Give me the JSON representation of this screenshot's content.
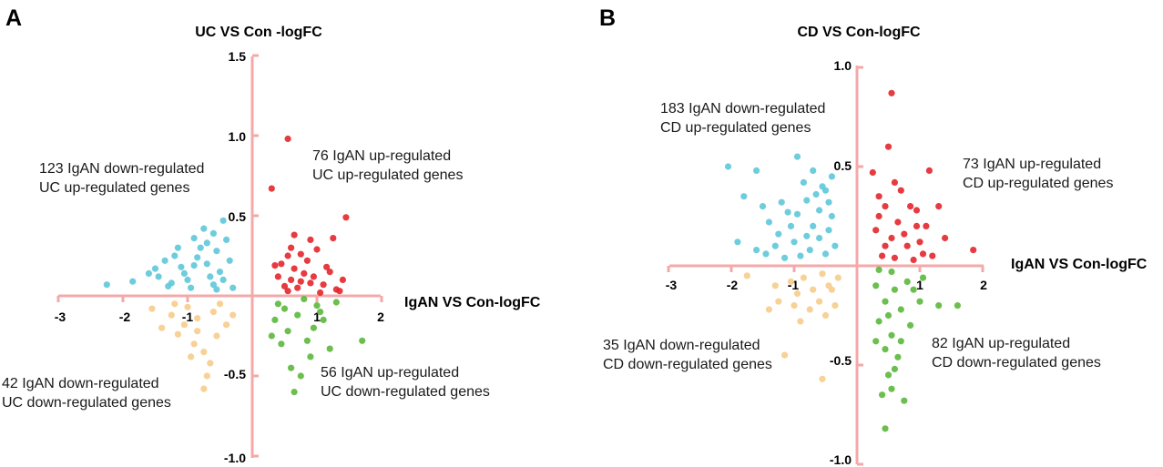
{
  "colors": {
    "axis": "#f4a9a9",
    "upup": "#e3262b",
    "downup": "#5ec8d8",
    "downdown": "#f6cc8a",
    "updown": "#5cb83c"
  },
  "chart_data": [
    {
      "panel": "A",
      "type": "scatter",
      "title": "UC VS Con -logFC",
      "xlabel": "IgAN VS Con-logFC",
      "ylabel": "UC VS Con -logFC",
      "xlim": [
        -3,
        2
      ],
      "ylim": [
        -1.0,
        1.5
      ],
      "xticks": [
        "-3",
        "-2",
        "-1",
        "1",
        "2"
      ],
      "yticks": [
        "1.5",
        "1.0",
        "0.5",
        "-0.5",
        "-1.0"
      ],
      "quadrants": [
        {
          "key": "downup",
          "line1": "123 IgAN down-regulated",
          "line2": "UC up-regulated genes",
          "count": 123
        },
        {
          "key": "upup",
          "line1": "76 IgAN up-regulated",
          "line2": "UC up-regulated genes",
          "count": 76
        },
        {
          "key": "downdown",
          "line1": "42 IgAN down-regulated",
          "line2": "UC down-regulated genes",
          "count": 42
        },
        {
          "key": "updown",
          "line1": "56 IgAN up-regulated",
          "line2": "UC down-regulated genes",
          "count": 56
        }
      ],
      "series": [
        {
          "name": "IgAN up / UC up",
          "key": "upup",
          "points": [
            [
              0.55,
              0.98
            ],
            [
              0.3,
              0.67
            ],
            [
              0.35,
              0.19
            ],
            [
              1.45,
              0.49
            ],
            [
              0.65,
              0.38
            ],
            [
              1.25,
              0.36
            ],
            [
              0.9,
              0.35
            ],
            [
              0.6,
              0.3
            ],
            [
              1.0,
              0.29
            ],
            [
              0.55,
              0.25
            ],
            [
              0.75,
              0.26
            ],
            [
              0.45,
              0.2
            ],
            [
              0.85,
              0.22
            ],
            [
              1.15,
              0.18
            ],
            [
              0.4,
              0.12
            ],
            [
              0.6,
              0.1
            ],
            [
              1.4,
              0.1
            ],
            [
              1.1,
              0.07
            ],
            [
              0.7,
              0.05
            ],
            [
              1.3,
              0.04
            ],
            [
              0.5,
              0.06
            ],
            [
              0.9,
              0.08
            ],
            [
              1.2,
              0.15
            ],
            [
              0.8,
              0.14
            ],
            [
              0.65,
              0.17
            ],
            [
              1.35,
              0.03
            ],
            [
              0.95,
              0.12
            ],
            [
              0.55,
              0.03
            ],
            [
              1.05,
              0.02
            ],
            [
              0.75,
              0.09
            ]
          ]
        },
        {
          "name": "IgAN down / UC up",
          "key": "downup",
          "points": [
            [
              -2.25,
              0.07
            ],
            [
              -1.85,
              0.09
            ],
            [
              -1.6,
              0.14
            ],
            [
              -0.45,
              0.47
            ],
            [
              -0.6,
              0.39
            ],
            [
              -0.9,
              0.36
            ],
            [
              -1.2,
              0.25
            ],
            [
              -1.35,
              0.22
            ],
            [
              -1.1,
              0.18
            ],
            [
              -0.8,
              0.3
            ],
            [
              -0.55,
              0.28
            ],
            [
              -1.45,
              0.12
            ],
            [
              -1.0,
              0.1
            ],
            [
              -0.7,
              0.2
            ],
            [
              -0.4,
              0.35
            ],
            [
              -0.95,
              0.05
            ],
            [
              -1.25,
              0.08
            ],
            [
              -0.65,
              0.12
            ],
            [
              -0.5,
              0.15
            ],
            [
              -0.85,
              0.24
            ],
            [
              -1.15,
              0.3
            ],
            [
              -0.3,
              0.05
            ],
            [
              -0.75,
              0.42
            ],
            [
              -1.3,
              0.06
            ],
            [
              -0.6,
              0.07
            ],
            [
              -0.35,
              0.22
            ],
            [
              -1.05,
              0.14
            ],
            [
              -0.9,
              0.19
            ],
            [
              -0.45,
              0.1
            ],
            [
              -0.7,
              0.33
            ],
            [
              -1.5,
              0.17
            ],
            [
              -0.55,
              0.04
            ]
          ]
        },
        {
          "name": "IgAN down / UC down",
          "key": "downdown",
          "points": [
            [
              -1.55,
              -0.08
            ],
            [
              -1.25,
              -0.12
            ],
            [
              -1.0,
              -0.07
            ],
            [
              -0.85,
              -0.14
            ],
            [
              -0.6,
              -0.1
            ],
            [
              -1.4,
              -0.2
            ],
            [
              -1.15,
              -0.24
            ],
            [
              -0.9,
              -0.3
            ],
            [
              -0.75,
              -0.35
            ],
            [
              -0.55,
              -0.25
            ],
            [
              -0.7,
              -0.5
            ],
            [
              -0.75,
              -0.58
            ],
            [
              -0.65,
              -0.42
            ],
            [
              -1.05,
              -0.18
            ],
            [
              -0.4,
              -0.18
            ],
            [
              -0.95,
              -0.38
            ],
            [
              -1.2,
              -0.05
            ],
            [
              -0.5,
              -0.05
            ],
            [
              -0.3,
              -0.12
            ],
            [
              -0.85,
              -0.22
            ]
          ]
        },
        {
          "name": "IgAN up / UC down",
          "key": "updown",
          "points": [
            [
              0.65,
              -0.6
            ],
            [
              0.75,
              -0.5
            ],
            [
              0.6,
              -0.45
            ],
            [
              0.9,
              -0.38
            ],
            [
              1.2,
              -0.33
            ],
            [
              1.7,
              -0.28
            ],
            [
              0.45,
              -0.3
            ],
            [
              0.55,
              -0.22
            ],
            [
              0.35,
              -0.15
            ],
            [
              0.7,
              -0.12
            ],
            [
              1.0,
              -0.06
            ],
            [
              1.3,
              -0.04
            ],
            [
              0.8,
              -0.02
            ],
            [
              1.1,
              -0.15
            ],
            [
              0.5,
              -0.08
            ],
            [
              0.95,
              -0.2
            ],
            [
              0.3,
              -0.25
            ],
            [
              0.4,
              -0.05
            ],
            [
              0.85,
              -0.28
            ],
            [
              1.05,
              -0.1
            ]
          ]
        }
      ]
    },
    {
      "panel": "B",
      "type": "scatter",
      "title": "CD VS Con-logFC",
      "xlabel": "IgAN VS Con-logFC",
      "ylabel": "CD VS Con-logFC",
      "xlim": [
        -3,
        2
      ],
      "ylim": [
        -1.0,
        1.0
      ],
      "xticks": [
        "-3",
        "-2",
        "-1",
        "1",
        "2"
      ],
      "yticks": [
        "1.0",
        "0.5",
        "-0.5",
        "-1.0"
      ],
      "quadrants": [
        {
          "key": "downup",
          "line1": "183 IgAN down-regulated",
          "line2": "CD up-regulated genes",
          "count": 183
        },
        {
          "key": "upup",
          "line1": "73 IgAN up-regulated",
          "line2": "CD up-regulated genes",
          "count": 73
        },
        {
          "key": "downdown",
          "line1": "35 IgAN down-regulated",
          "line2": "CD down-regulated genes",
          "count": 35
        },
        {
          "key": "updown",
          "line1": "82 IgAN up-regulated",
          "line2": "CD down-regulated genes",
          "count": 82
        }
      ],
      "series": [
        {
          "name": "IgAN up / CD up",
          "key": "upup",
          "points": [
            [
              0.55,
              0.87
            ],
            [
              0.25,
              0.47
            ],
            [
              0.35,
              0.35
            ],
            [
              0.45,
              0.3
            ],
            [
              0.7,
              0.38
            ],
            [
              0.95,
              0.28
            ],
            [
              1.3,
              0.3
            ],
            [
              1.1,
              0.2
            ],
            [
              0.3,
              0.18
            ],
            [
              0.55,
              0.14
            ],
            [
              0.8,
              0.1
            ],
            [
              1.2,
              0.05
            ],
            [
              0.4,
              0.05
            ],
            [
              0.65,
              0.22
            ],
            [
              1.0,
              0.12
            ],
            [
              1.85,
              0.08
            ],
            [
              0.5,
              0.6
            ],
            [
              1.15,
              0.48
            ],
            [
              0.6,
              0.42
            ],
            [
              0.9,
              0.03
            ],
            [
              0.35,
              0.25
            ],
            [
              0.75,
              0.16
            ],
            [
              1.4,
              0.14
            ],
            [
              0.45,
              0.1
            ],
            [
              0.85,
              0.3
            ],
            [
              1.05,
              0.06
            ],
            [
              0.6,
              0.04
            ],
            [
              0.95,
              0.2
            ]
          ]
        },
        {
          "name": "IgAN down / CD up",
          "key": "downup",
          "points": [
            [
              -2.05,
              0.5
            ],
            [
              -1.6,
              0.48
            ],
            [
              -0.95,
              0.55
            ],
            [
              -0.4,
              0.45
            ],
            [
              -0.5,
              0.38
            ],
            [
              -1.8,
              0.35
            ],
            [
              -1.5,
              0.3
            ],
            [
              -1.2,
              0.32
            ],
            [
              -0.8,
              0.33
            ],
            [
              -0.6,
              0.28
            ],
            [
              -1.4,
              0.22
            ],
            [
              -1.05,
              0.2
            ],
            [
              -0.7,
              0.2
            ],
            [
              -0.45,
              0.18
            ],
            [
              -1.9,
              0.12
            ],
            [
              -1.6,
              0.08
            ],
            [
              -1.3,
              0.1
            ],
            [
              -1.0,
              0.12
            ],
            [
              -0.75,
              0.08
            ],
            [
              -0.5,
              0.06
            ],
            [
              -0.35,
              0.1
            ],
            [
              -0.9,
              0.05
            ],
            [
              -1.15,
              0.04
            ],
            [
              -0.6,
              0.14
            ],
            [
              -0.85,
              0.42
            ],
            [
              -0.55,
              0.4
            ],
            [
              -1.25,
              0.16
            ],
            [
              -0.4,
              0.25
            ],
            [
              -0.7,
              0.48
            ],
            [
              -1.45,
              0.06
            ],
            [
              -0.95,
              0.26
            ],
            [
              -0.65,
              0.36
            ],
            [
              -1.1,
              0.27
            ],
            [
              -0.8,
              0.15
            ],
            [
              -0.45,
              0.32
            ]
          ]
        },
        {
          "name": "IgAN down / CD down",
          "key": "downdown",
          "points": [
            [
              -1.75,
              -0.05
            ],
            [
              -1.3,
              -0.1
            ],
            [
              -1.05,
              -0.08
            ],
            [
              -0.85,
              -0.06
            ],
            [
              -0.55,
              -0.04
            ],
            [
              -0.4,
              -0.12
            ],
            [
              -1.25,
              -0.18
            ],
            [
              -1.0,
              -0.2
            ],
            [
              -0.75,
              -0.22
            ],
            [
              -0.5,
              -0.25
            ],
            [
              -0.35,
              -0.2
            ],
            [
              -0.9,
              -0.28
            ],
            [
              -0.6,
              -0.18
            ],
            [
              -1.15,
              -0.45
            ],
            [
              -0.55,
              -0.57
            ],
            [
              -0.45,
              -0.1
            ],
            [
              -1.4,
              -0.22
            ],
            [
              -0.7,
              -0.12
            ],
            [
              -0.3,
              -0.06
            ],
            [
              -0.95,
              -0.14
            ]
          ]
        },
        {
          "name": "IgAN up / CD down",
          "key": "updown",
          "points": [
            [
              0.35,
              -0.02
            ],
            [
              0.55,
              -0.03
            ],
            [
              0.3,
              -0.1
            ],
            [
              0.6,
              -0.12
            ],
            [
              0.8,
              -0.08
            ],
            [
              1.05,
              -0.06
            ],
            [
              0.45,
              -0.18
            ],
            [
              0.7,
              -0.22
            ],
            [
              1.0,
              -0.18
            ],
            [
              1.3,
              -0.2
            ],
            [
              1.6,
              -0.2
            ],
            [
              0.35,
              -0.28
            ],
            [
              0.55,
              -0.35
            ],
            [
              0.85,
              -0.3
            ],
            [
              0.45,
              -0.42
            ],
            [
              0.65,
              -0.46
            ],
            [
              0.5,
              -0.55
            ],
            [
              0.55,
              -0.62
            ],
            [
              0.4,
              -0.65
            ],
            [
              0.75,
              -0.68
            ],
            [
              0.45,
              -0.82
            ],
            [
              0.9,
              -0.12
            ],
            [
              0.3,
              -0.38
            ],
            [
              0.7,
              -0.38
            ],
            [
              0.6,
              -0.52
            ],
            [
              0.5,
              -0.25
            ]
          ]
        }
      ]
    }
  ]
}
